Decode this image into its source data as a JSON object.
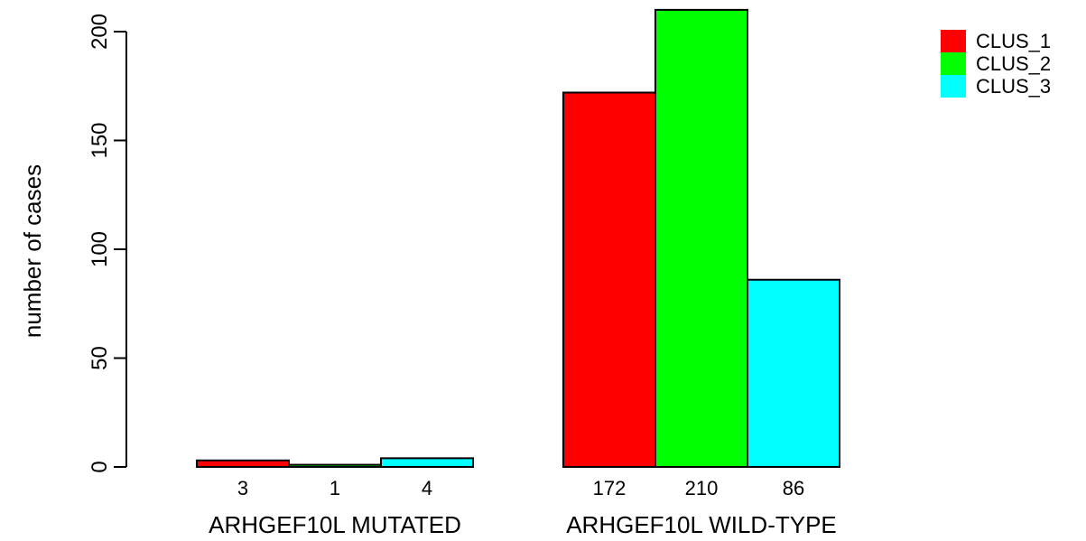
{
  "chart_data": {
    "type": "bar",
    "categories": [
      "ARHGEF10L MUTATED",
      "ARHGEF10L WILD-TYPE"
    ],
    "series": [
      {
        "name": "CLUS_1",
        "color": "#ff0000",
        "values": [
          3,
          172
        ]
      },
      {
        "name": "CLUS_2",
        "color": "#00ff00",
        "values": [
          1,
          210
        ]
      },
      {
        "name": "CLUS_3",
        "color": "#00ffff",
        "values": [
          4,
          86
        ]
      }
    ],
    "title": "",
    "xlabel": "",
    "ylabel": "number of cases",
    "ylim": [
      0,
      210
    ],
    "yticks": [
      0,
      50,
      100,
      150,
      200
    ],
    "data_labels": [
      [
        "3",
        "1",
        "4"
      ],
      [
        "172",
        "210",
        "86"
      ]
    ],
    "grid": false,
    "legend": "top-right"
  }
}
